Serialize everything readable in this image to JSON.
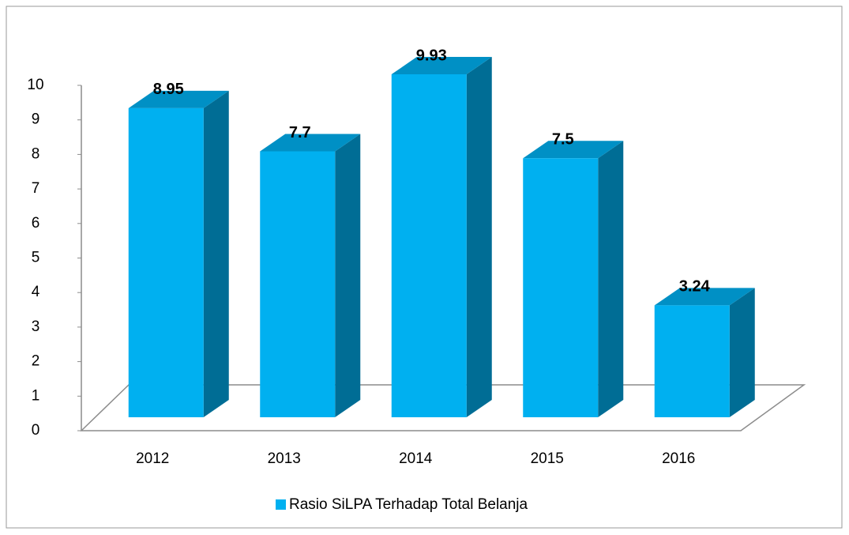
{
  "chart_data": {
    "type": "bar3d",
    "categories": [
      "2012",
      "2013",
      "2014",
      "2015",
      "2016"
    ],
    "series": [
      {
        "name": "Rasio SiLPA Terhadap Total Belanja",
        "color": "#00b0f0",
        "values": [
          8.95,
          7.7,
          9.93,
          7.5,
          3.24
        ]
      }
    ],
    "ylim": [
      0,
      10
    ],
    "yticks": [
      0,
      1,
      2,
      3,
      4,
      5,
      6,
      7,
      8,
      9,
      10
    ],
    "legend": "bottom"
  }
}
